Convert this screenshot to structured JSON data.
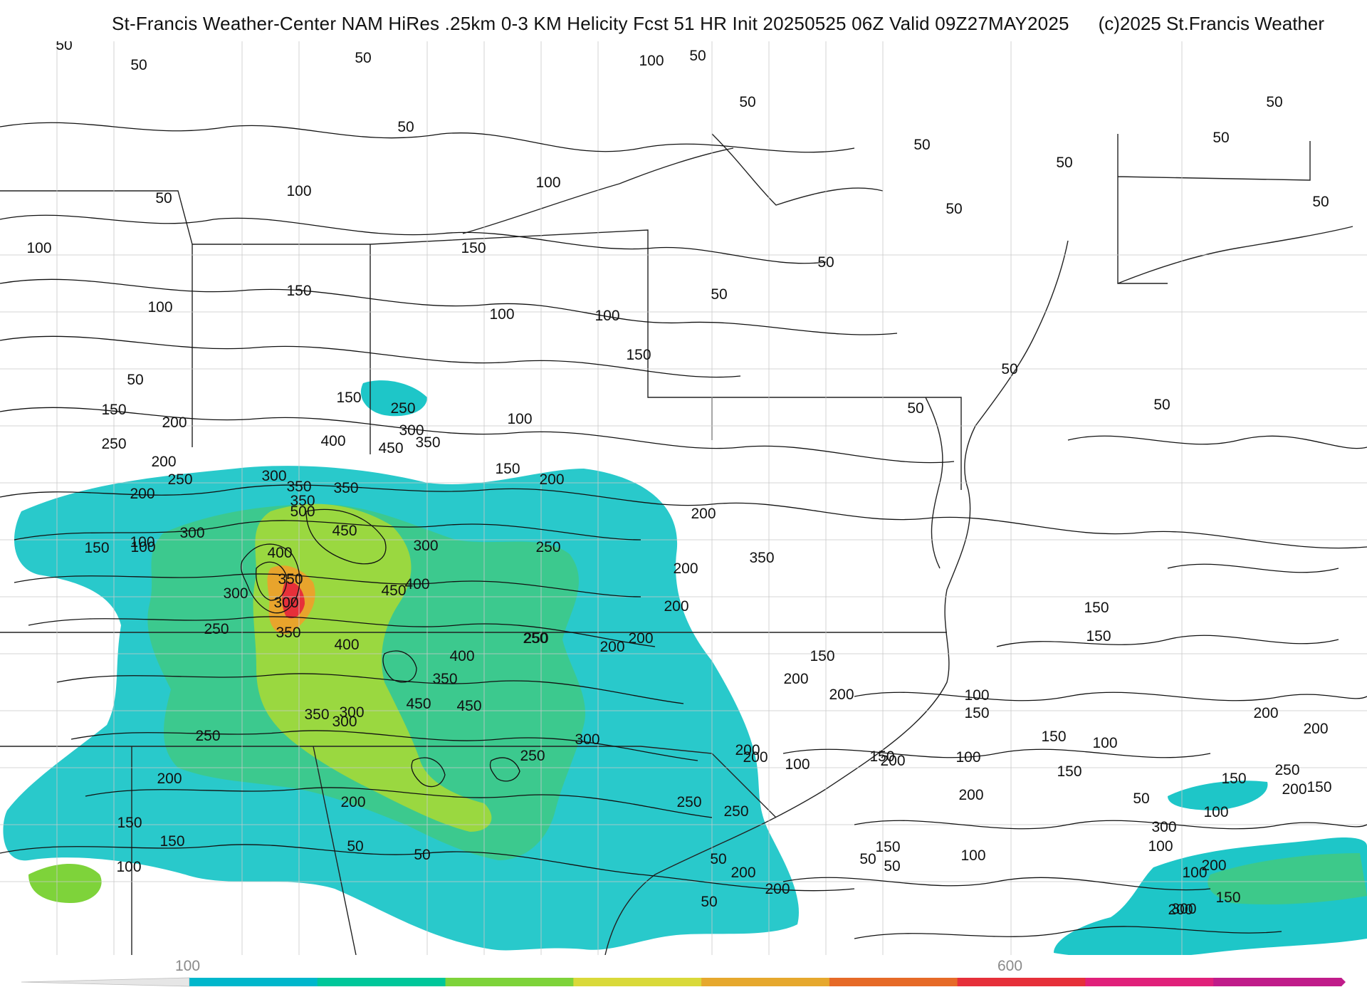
{
  "header": {
    "title": "St-Francis Weather-Center NAM HiRes .25km 0-3 KM Helicity Fcst 51 HR Init 20250525 06Z  Valid 09Z27MAY2025",
    "copyright": "(c)2025 St.Francis Weather"
  },
  "colorbar": {
    "tick_labels": [
      "100",
      "600"
    ],
    "colors": [
      "#00b7cc",
      "#00c79a",
      "#7ed33a",
      "#d9d93a",
      "#e6a82e",
      "#e66a28",
      "#e6303a",
      "#e0207a",
      "#c01c8a"
    ]
  },
  "contour_labels": [
    "50",
    "50",
    "50",
    "50",
    "50",
    "100",
    "50",
    "50",
    "50",
    "50",
    "50",
    "100",
    "100",
    "50",
    "50",
    "50",
    "100",
    "150",
    "150",
    "100",
    "100",
    "100",
    "150",
    "100",
    "50",
    "50",
    "50",
    "50",
    "50",
    "50",
    "150",
    "250",
    "200",
    "150",
    "250",
    "200",
    "400",
    "300",
    "350",
    "450",
    "350",
    "200",
    "250",
    "150",
    "200",
    "300",
    "350",
    "350",
    "500",
    "200",
    "300",
    "450",
    "400",
    "300",
    "250",
    "350",
    "150",
    "100",
    "300",
    "400",
    "450",
    "350",
    "250",
    "300",
    "100",
    "200",
    "200",
    "400",
    "350",
    "250",
    "200",
    "200",
    "150",
    "250",
    "400",
    "350",
    "450",
    "450",
    "300",
    "350",
    "300",
    "250",
    "300",
    "250",
    "150",
    "200",
    "200",
    "150",
    "200",
    "200",
    "200",
    "150",
    "100",
    "200",
    "100",
    "100",
    "150",
    "200",
    "250",
    "150",
    "200",
    "250",
    "200",
    "150",
    "100",
    "150",
    "200",
    "150",
    "250",
    "300",
    "200",
    "200",
    "150",
    "100",
    "100",
    "150",
    "150",
    "200",
    "100",
    "50",
    "50",
    "50",
    "50",
    "50",
    "50",
    "50",
    "100",
    "100",
    "150",
    "200",
    "200",
    "300"
  ]
}
